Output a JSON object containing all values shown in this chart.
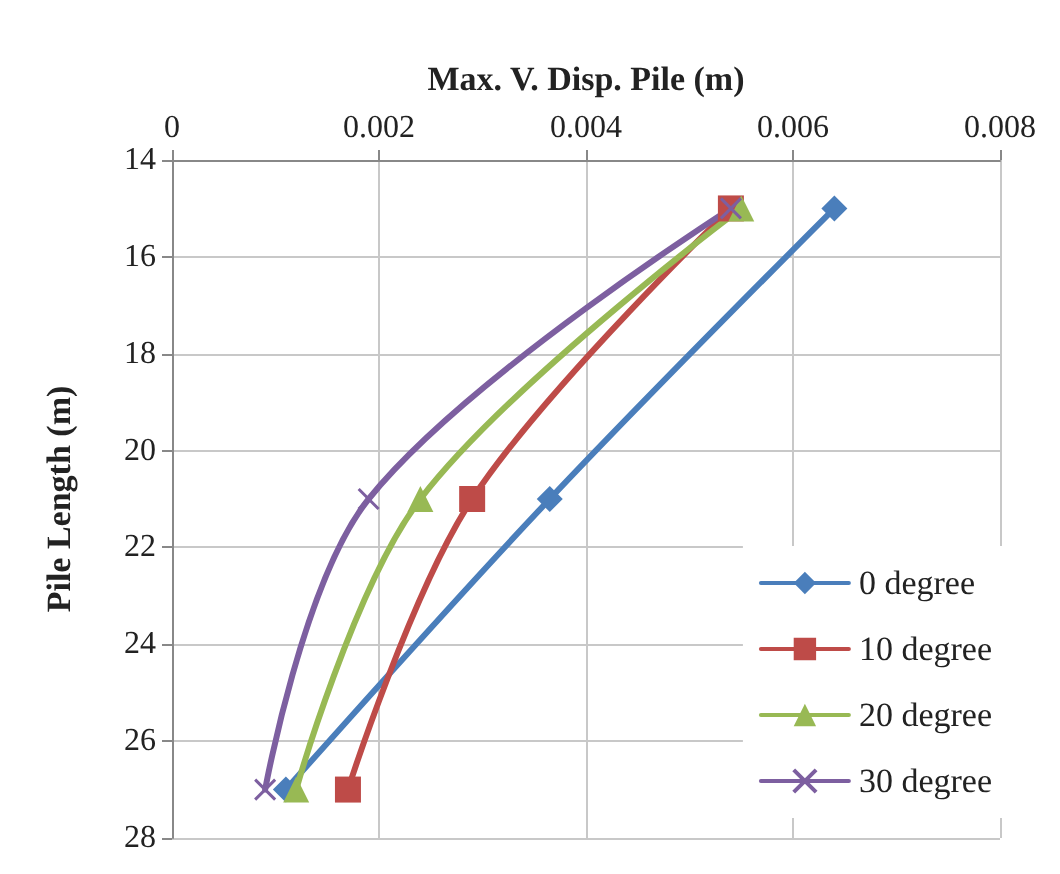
{
  "chart_data": {
    "type": "line",
    "xlabel": "Max. V. Disp. Pile (m)",
    "ylabel": "Pile Length (m)",
    "xlim": [
      0,
      0.008
    ],
    "xticks": [
      0,
      0.002,
      0.004,
      0.006,
      0.008
    ],
    "ylim": [
      28,
      14
    ],
    "yticks": [
      14,
      16,
      18,
      20,
      22,
      24,
      26,
      28
    ],
    "grid": true,
    "legend": "bottom right",
    "series": [
      {
        "name": "0 degree",
        "color": "#4a7ebb",
        "marker": "diamond",
        "x": [
          0.0064,
          0.00365,
          0.0011
        ],
        "values": [
          15,
          21,
          27
        ]
      },
      {
        "name": "10 degree",
        "color": "#be4b48",
        "marker": "square",
        "x": [
          0.0054,
          0.0029,
          0.0017
        ],
        "values": [
          15,
          21,
          27
        ]
      },
      {
        "name": "20 degree",
        "color": "#98b954",
        "marker": "triangle",
        "x": [
          0.0055,
          0.0024,
          0.0012
        ],
        "values": [
          15,
          21,
          27
        ]
      },
      {
        "name": "30 degree",
        "color": "#7d5fa0",
        "marker": "cross",
        "x": [
          0.0054,
          0.0019,
          0.0009
        ],
        "values": [
          15,
          21,
          27
        ]
      }
    ]
  }
}
